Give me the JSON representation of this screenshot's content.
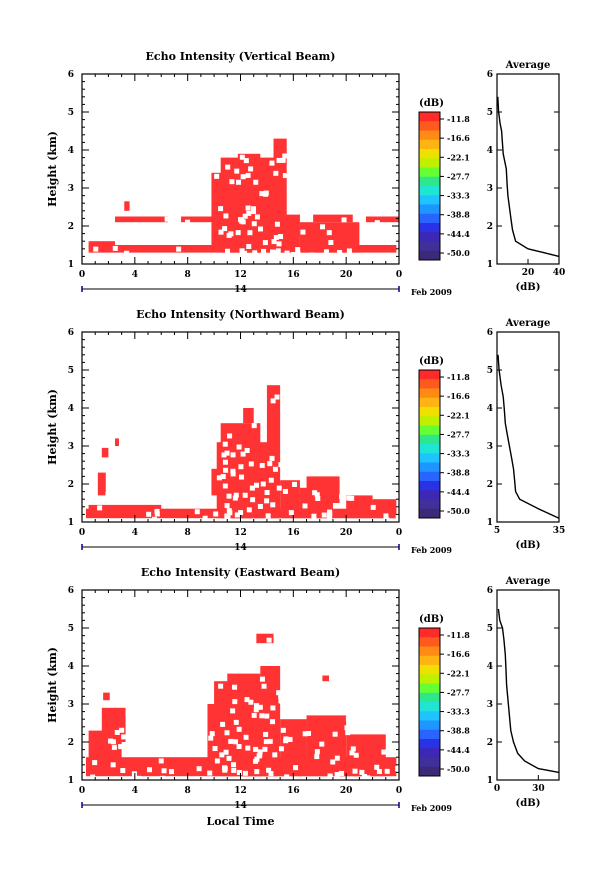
{
  "chart_data": [
    {
      "type": "heatmap",
      "title": "Echo Intensity (Vertical Beam)",
      "ylabel": "Height (km)",
      "ylim": [
        1,
        6
      ],
      "y_ticks": [
        "1",
        "2",
        "3",
        "4",
        "5",
        "6"
      ],
      "xlim": [
        0,
        24
      ],
      "x_ticks": [
        "0",
        "4",
        "8",
        "12",
        "16",
        "20",
        "0"
      ],
      "date_label": "14",
      "month_label": "Feb 2009",
      "cell_value_dB": -11.8,
      "echo_cells": [
        {
          "x": [
            0.5,
            23.8
          ],
          "y": [
            1.3,
            1.5
          ]
        },
        {
          "x": [
            0.5,
            2.5
          ],
          "y": [
            1.45,
            1.6
          ]
        },
        {
          "x": [
            2.5,
            6.5
          ],
          "y": [
            2.1,
            2.25
          ]
        },
        {
          "x": [
            3.2,
            3.6
          ],
          "y": [
            2.4,
            2.65
          ]
        },
        {
          "x": [
            7.5,
            10
          ],
          "y": [
            2.1,
            2.25
          ]
        },
        {
          "x": [
            9.8,
            11.0
          ],
          "y": [
            1.45,
            3.4
          ]
        },
        {
          "x": [
            10.5,
            14.8
          ],
          "y": [
            1.3,
            3.8
          ]
        },
        {
          "x": [
            11.8,
            13.5
          ],
          "y": [
            1.3,
            3.9
          ]
        },
        {
          "x": [
            14.5,
            15.5
          ],
          "y": [
            1.3,
            4.3
          ]
        },
        {
          "x": [
            14.2,
            16.5
          ],
          "y": [
            1.3,
            2.3
          ]
        },
        {
          "x": [
            16.5,
            21
          ],
          "y": [
            1.3,
            2.1
          ]
        },
        {
          "x": [
            17.5,
            20.5
          ],
          "y": [
            2.1,
            2.3
          ]
        },
        {
          "x": [
            21.5,
            24
          ],
          "y": [
            2.1,
            2.25
          ]
        }
      ],
      "colorbar": {
        "unit": "(dB)",
        "labels": [
          "-11.8",
          "-16.6",
          "-22.1",
          "-27.7",
          "-33.3",
          "-38.8",
          "-44.4",
          "-50.0"
        ]
      },
      "average": {
        "title": "Average",
        "xlabel": "(dB)",
        "xlim": [
          0,
          40
        ],
        "x_ticks": [
          "20",
          "40"
        ],
        "ylim": [
          1,
          6
        ],
        "y_ticks": [
          "1",
          "2",
          "3",
          "4",
          "5",
          "6"
        ],
        "profile": [
          {
            "x": 0.5,
            "y": 5.4
          },
          {
            "x": 1,
            "y": 5.0
          },
          {
            "x": 2,
            "y": 4.7
          },
          {
            "x": 3,
            "y": 4.5
          },
          {
            "x": 3.5,
            "y": 4.2
          },
          {
            "x": 4,
            "y": 3.9
          },
          {
            "x": 6,
            "y": 3.5
          },
          {
            "x": 6.5,
            "y": 3.1
          },
          {
            "x": 7,
            "y": 2.8
          },
          {
            "x": 8,
            "y": 2.5
          },
          {
            "x": 9,
            "y": 2.2
          },
          {
            "x": 10,
            "y": 1.9
          },
          {
            "x": 12,
            "y": 1.6
          },
          {
            "x": 20,
            "y": 1.4
          },
          {
            "x": 30,
            "y": 1.3
          },
          {
            "x": 40,
            "y": 1.2
          }
        ]
      }
    },
    {
      "type": "heatmap",
      "title": "Echo Intensity (Northward Beam)",
      "ylabel": "Height (km)",
      "ylim": [
        1,
        6
      ],
      "y_ticks": [
        "1",
        "2",
        "3",
        "4",
        "5",
        "6"
      ],
      "xlim": [
        0,
        24
      ],
      "x_ticks": [
        "0",
        "4",
        "8",
        "12",
        "16",
        "20",
        "0"
      ],
      "date_label": "14",
      "month_label": "Feb 2009",
      "cell_value_dB": -11.8,
      "echo_cells": [
        {
          "x": [
            0.3,
            23.8
          ],
          "y": [
            1.1,
            1.35
          ]
        },
        {
          "x": [
            0.5,
            6.0
          ],
          "y": [
            1.3,
            1.45
          ]
        },
        {
          "x": [
            1.2,
            1.8
          ],
          "y": [
            1.7,
            2.3
          ]
        },
        {
          "x": [
            1.5,
            2.0
          ],
          "y": [
            2.7,
            2.95
          ]
        },
        {
          "x": [
            2.5,
            2.8
          ],
          "y": [
            3.0,
            3.2
          ]
        },
        {
          "x": [
            9.8,
            10.5
          ],
          "y": [
            1.7,
            2.4
          ]
        },
        {
          "x": [
            10.2,
            14.5
          ],
          "y": [
            1.1,
            3.1
          ]
        },
        {
          "x": [
            10.5,
            13.5
          ],
          "y": [
            1.1,
            3.6
          ]
        },
        {
          "x": [
            12.2,
            13
          ],
          "y": [
            3.6,
            4.0
          ]
        },
        {
          "x": [
            14,
            15
          ],
          "y": [
            1.1,
            4.6
          ]
        },
        {
          "x": [
            15,
            16.5
          ],
          "y": [
            1.1,
            2.1
          ]
        },
        {
          "x": [
            16.5,
            19
          ],
          "y": [
            1.1,
            1.9
          ]
        },
        {
          "x": [
            17,
            19.5
          ],
          "y": [
            1.5,
            2.2
          ]
        },
        {
          "x": [
            20,
            22
          ],
          "y": [
            1.1,
            1.7
          ]
        },
        {
          "x": [
            22,
            23.8
          ],
          "y": [
            1.1,
            1.6
          ]
        }
      ],
      "colorbar": {
        "unit": "(dB)",
        "labels": [
          "-11.8",
          "-16.6",
          "-22.1",
          "-27.7",
          "-33.3",
          "-38.8",
          "-44.4",
          "-50.0"
        ]
      },
      "average": {
        "title": "Average",
        "xlabel": "(dB)",
        "xlim": [
          5,
          35
        ],
        "x_ticks": [
          "5",
          "35"
        ],
        "ylim": [
          1,
          6
        ],
        "y_ticks": [
          "1",
          "2",
          "3",
          "4",
          "5",
          "6"
        ],
        "profile": [
          {
            "x": 5.5,
            "y": 5.4
          },
          {
            "x": 6,
            "y": 5.0
          },
          {
            "x": 7,
            "y": 4.6
          },
          {
            "x": 8,
            "y": 4.3
          },
          {
            "x": 8.5,
            "y": 4.0
          },
          {
            "x": 9,
            "y": 3.6
          },
          {
            "x": 10,
            "y": 3.3
          },
          {
            "x": 11,
            "y": 3.0
          },
          {
            "x": 12,
            "y": 2.7
          },
          {
            "x": 13,
            "y": 2.4
          },
          {
            "x": 13.5,
            "y": 2.1
          },
          {
            "x": 14,
            "y": 1.8
          },
          {
            "x": 16,
            "y": 1.6
          },
          {
            "x": 25,
            "y": 1.35
          },
          {
            "x": 35,
            "y": 1.1
          }
        ]
      }
    },
    {
      "type": "heatmap",
      "title": "Echo Intensity (Eastward Beam)",
      "ylabel": "Height (km)",
      "xlabel": "Local Time",
      "ylim": [
        1,
        6
      ],
      "y_ticks": [
        "1",
        "2",
        "3",
        "4",
        "5",
        "6"
      ],
      "xlim": [
        0,
        24
      ],
      "x_ticks": [
        "0",
        "4",
        "8",
        "12",
        "16",
        "20",
        "0"
      ],
      "date_label": "14",
      "month_label": "Feb 2009",
      "cell_value_dB": -11.8,
      "echo_cells": [
        {
          "x": [
            0.3,
            23.8
          ],
          "y": [
            1.1,
            1.6
          ]
        },
        {
          "x": [
            0.5,
            3.0
          ],
          "y": [
            1.5,
            2.3
          ]
        },
        {
          "x": [
            1.5,
            3.3
          ],
          "y": [
            2.0,
            2.9
          ]
        },
        {
          "x": [
            1.6,
            2.1
          ],
          "y": [
            3.1,
            3.3
          ]
        },
        {
          "x": [
            9.5,
            11
          ],
          "y": [
            1.5,
            3.0
          ]
        },
        {
          "x": [
            10,
            14
          ],
          "y": [
            1.1,
            3.6
          ]
        },
        {
          "x": [
            11,
            13.5
          ],
          "y": [
            1.1,
            3.8
          ]
        },
        {
          "x": [
            13.5,
            15
          ],
          "y": [
            1.1,
            4.0
          ]
        },
        {
          "x": [
            13.2,
            14.5
          ],
          "y": [
            4.6,
            4.85
          ]
        },
        {
          "x": [
            15,
            17
          ],
          "y": [
            1.1,
            2.6
          ]
        },
        {
          "x": [
            17,
            20
          ],
          "y": [
            1.1,
            2.7
          ]
        },
        {
          "x": [
            20,
            23
          ],
          "y": [
            1.1,
            2.2
          ]
        },
        {
          "x": [
            18.2,
            18.7
          ],
          "y": [
            3.6,
            3.75
          ]
        }
      ],
      "colorbar": {
        "unit": "(dB)",
        "labels": [
          "-11.8",
          "-16.6",
          "-22.1",
          "-27.7",
          "-33.3",
          "-38.8",
          "-44.4",
          "-50.0"
        ]
      },
      "average": {
        "title": "Average",
        "xlabel": "(dB)",
        "xlim": [
          0,
          45
        ],
        "x_ticks": [
          "0",
          "30"
        ],
        "ylim": [
          1,
          6
        ],
        "y_ticks": [
          "1",
          "2",
          "3",
          "4",
          "5",
          "6"
        ],
        "profile": [
          {
            "x": 1,
            "y": 5.5
          },
          {
            "x": 2,
            "y": 5.2
          },
          {
            "x": 4,
            "y": 5.0
          },
          {
            "x": 5,
            "y": 4.7
          },
          {
            "x": 6,
            "y": 4.3
          },
          {
            "x": 6.5,
            "y": 3.9
          },
          {
            "x": 7,
            "y": 3.5
          },
          {
            "x": 8,
            "y": 3.1
          },
          {
            "x": 9,
            "y": 2.7
          },
          {
            "x": 10,
            "y": 2.3
          },
          {
            "x": 12,
            "y": 2.0
          },
          {
            "x": 15,
            "y": 1.7
          },
          {
            "x": 20,
            "y": 1.5
          },
          {
            "x": 30,
            "y": 1.3
          },
          {
            "x": 45,
            "y": 1.2
          }
        ]
      }
    }
  ],
  "colors": {
    "echo": "#ff3333",
    "scale": [
      "#ff2a2a",
      "#ff5a1e",
      "#ff8a14",
      "#ffb414",
      "#f0e000",
      "#bff000",
      "#66ff33",
      "#2ee68c",
      "#1ee6d2",
      "#1ec3ff",
      "#1e96ff",
      "#2a64ff",
      "#2a32e6",
      "#3c28b4",
      "#40309a",
      "#3c2a78"
    ]
  }
}
